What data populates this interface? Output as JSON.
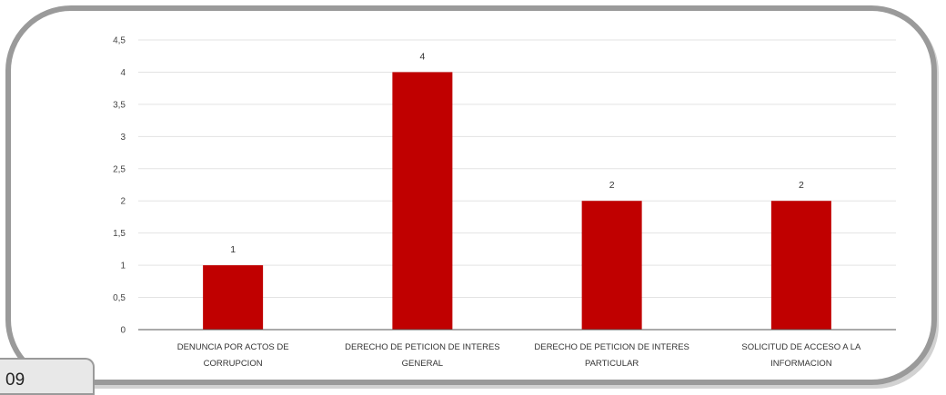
{
  "page_number": "09",
  "colors": {
    "bar": "#c00000",
    "grid": "#e3e3e3",
    "axis": "#555555"
  },
  "chart_data": {
    "type": "bar",
    "categories": [
      [
        "DENUNCIA POR ACTOS DE",
        "CORRUPCION"
      ],
      [
        "DERECHO DE PETICION DE INTERES",
        "GENERAL"
      ],
      [
        "DERECHO DE PETICION DE INTERES",
        "PARTICULAR"
      ],
      [
        "SOLICITUD DE ACCESO A LA",
        "INFORMACION"
      ]
    ],
    "values": [
      1,
      4,
      2,
      2
    ],
    "data_labels": [
      "1",
      "4",
      "2",
      "2"
    ],
    "y_ticks": [
      0,
      0.5,
      1,
      1.5,
      2,
      2.5,
      3,
      3.5,
      4,
      4.5
    ],
    "y_tick_labels": [
      "0",
      "0,5",
      "1",
      "1,5",
      "2",
      "2,5",
      "3",
      "3,5",
      "4",
      "4,5"
    ],
    "ylim": [
      0,
      4.5
    ],
    "grid": true,
    "legend": "none",
    "title": "",
    "xlabel": "",
    "ylabel": ""
  }
}
